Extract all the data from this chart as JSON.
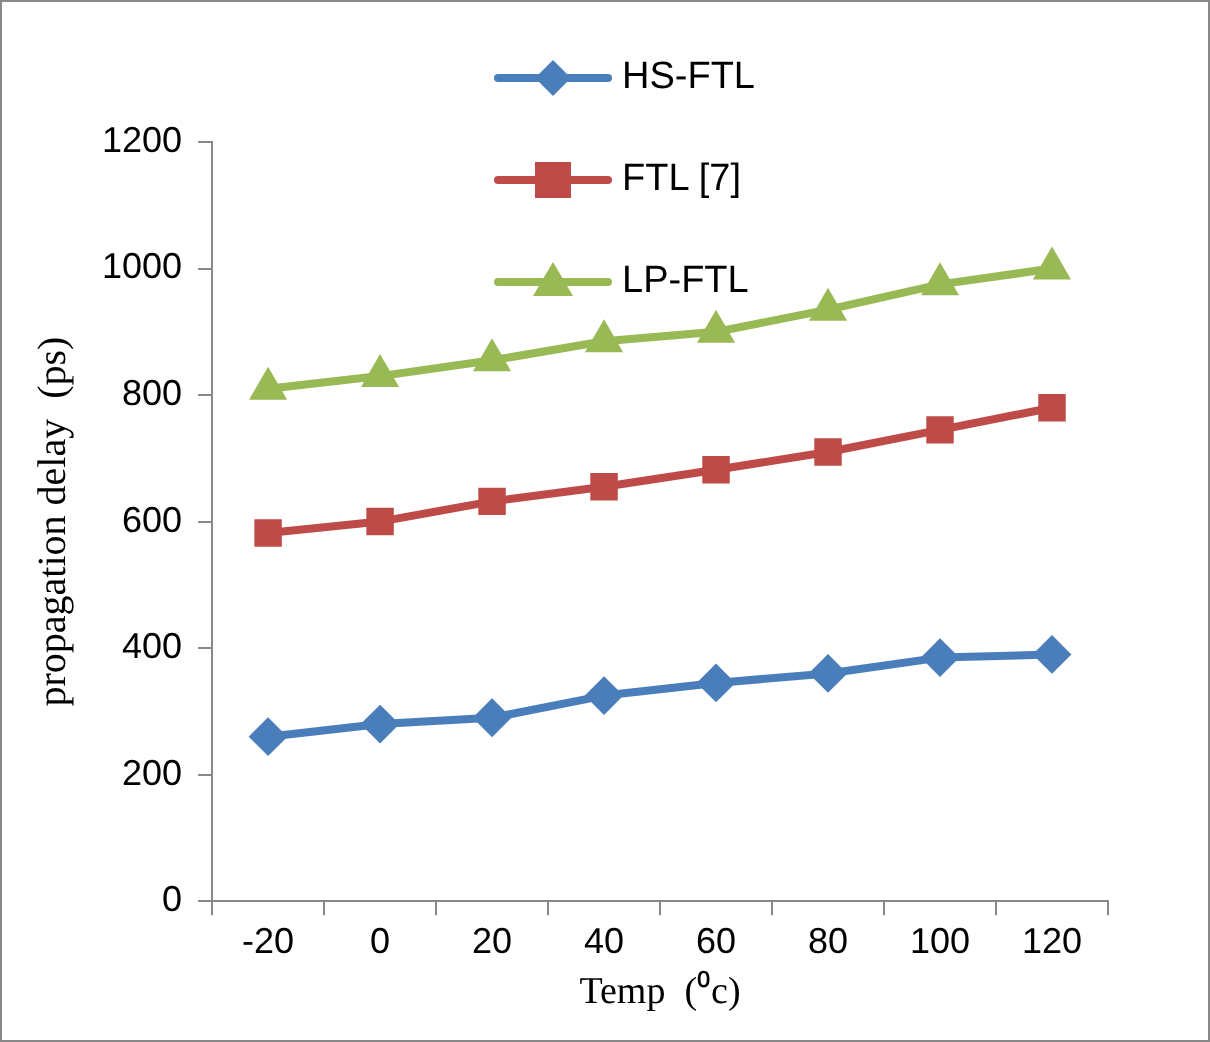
{
  "chart_data": {
    "type": "line",
    "xlabel": "Temp  (⁰c)",
    "ylabel": "propagation delay  (ps)",
    "categories": [
      "-20",
      "0",
      "20",
      "40",
      "60",
      "80",
      "100",
      "120"
    ],
    "series": [
      {
        "name": "HS-FTL",
        "color": "#4a7ebb",
        "marker": "diamond",
        "values": [
          260,
          280,
          290,
          325,
          345,
          360,
          385,
          390
        ]
      },
      {
        "name": "FTL [7]",
        "color": "#be4b48",
        "marker": "square",
        "values": [
          582,
          600,
          632,
          655,
          682,
          710,
          745,
          780
        ]
      },
      {
        "name": "LP-FTL",
        "color": "#98b954",
        "marker": "triangle",
        "values": [
          810,
          830,
          855,
          885,
          900,
          935,
          975,
          1000
        ]
      }
    ],
    "ylim": [
      0,
      1200
    ],
    "yticks": [
      0,
      200,
      400,
      600,
      800,
      1000,
      1200
    ],
    "grid": false,
    "legend": "top"
  }
}
